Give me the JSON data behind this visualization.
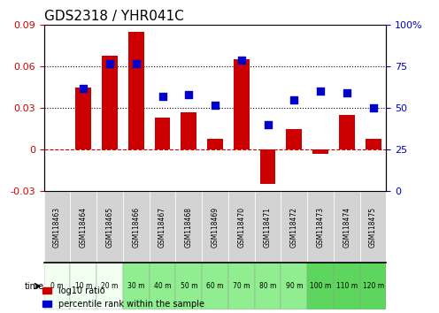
{
  "title": "GDS2318 / YHR041C",
  "samples": [
    "GSM118463",
    "GSM118464",
    "GSM118465",
    "GSM118466",
    "GSM118467",
    "GSM118468",
    "GSM118469",
    "GSM118470",
    "GSM118471",
    "GSM118472",
    "GSM118473",
    "GSM118474",
    "GSM118475"
  ],
  "time_labels": [
    "0 m",
    "10 m",
    "20 m",
    "30 m",
    "40 m",
    "50 m",
    "60 m",
    "70 m",
    "80 m",
    "90 m",
    "100 m",
    "110 m",
    "120 m"
  ],
  "time_bg_colors": [
    "#f0fff0",
    "#f0fff0",
    "#f0fff0",
    "#90ee90",
    "#90ee90",
    "#90ee90",
    "#90ee90",
    "#90ee90",
    "#90ee90",
    "#90ee90",
    "#5cd65c",
    "#5cd65c",
    "#5cd65c"
  ],
  "log10_ratio": [
    0.0,
    0.045,
    0.068,
    0.085,
    0.023,
    0.027,
    0.008,
    0.065,
    -0.025,
    0.015,
    -0.003,
    0.025,
    0.008
  ],
  "percentile_rank": [
    null,
    62,
    77,
    77,
    57,
    58,
    52,
    79,
    40,
    55,
    60,
    59,
    50
  ],
  "bar_color": "#cc0000",
  "dot_color": "#0000cc",
  "ylim_left": [
    -0.03,
    0.09
  ],
  "ylim_right": [
    0,
    100
  ],
  "yticks_left": [
    -0.03,
    0,
    0.03,
    0.06,
    0.09
  ],
  "yticks_right": [
    0,
    25,
    50,
    75,
    100
  ],
  "ytick_labels_left": [
    "-0.03",
    "0",
    "0.03",
    "0.06",
    "0.09"
  ],
  "ytick_labels_right": [
    "0",
    "25",
    "50",
    "75",
    "100%"
  ],
  "hline_dotted_values": [
    0.03,
    0.06
  ],
  "hline_zero_color": "#cc0000",
  "legend_ratio_label": "log10 ratio",
  "legend_pct_label": "percentile rank within the sample",
  "xlabel_time": "time"
}
